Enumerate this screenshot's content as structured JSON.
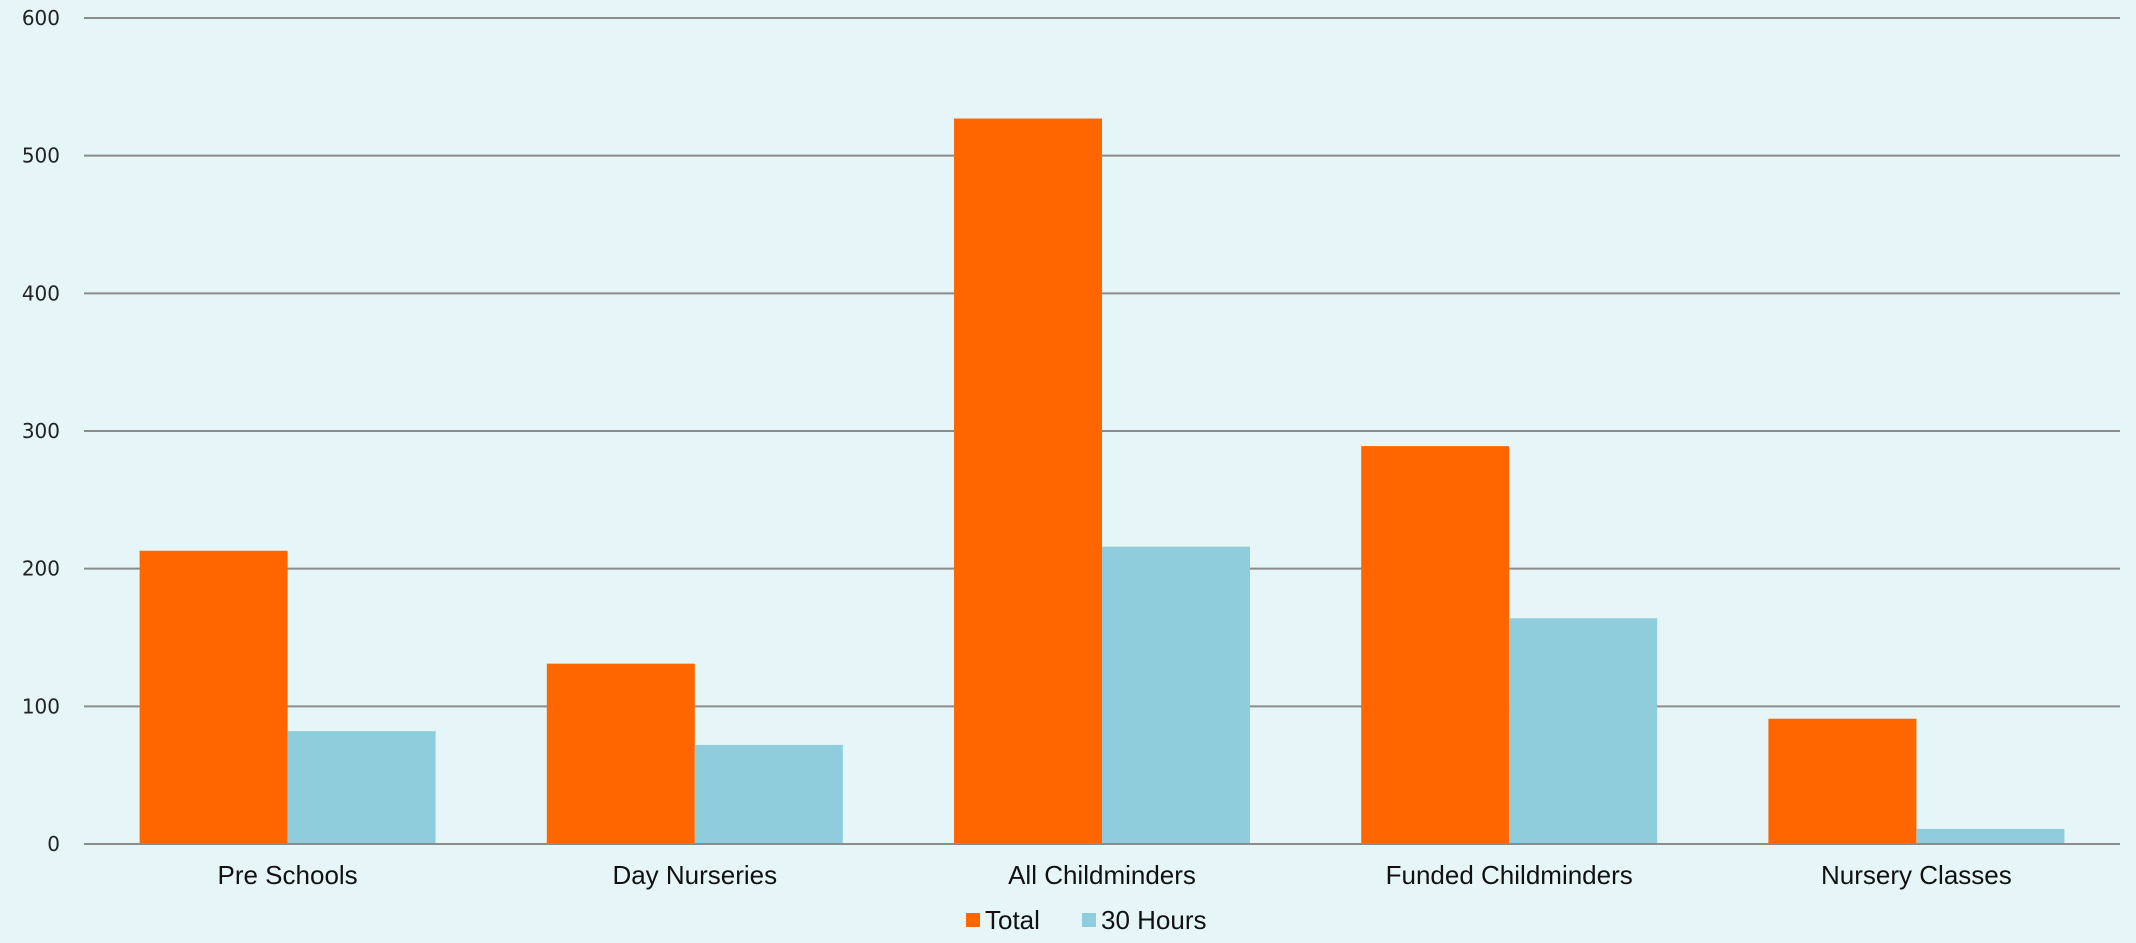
{
  "chart_data": {
    "type": "bar",
    "title": "",
    "xlabel": "",
    "ylabel": "",
    "categories": [
      "Pre Schools",
      "Day Nurseries",
      "All Childminders",
      "Funded Childminders",
      "Nursery Classes"
    ],
    "series": [
      {
        "name": "Total",
        "color": "#ff6600",
        "values": [
          213,
          131,
          527,
          289,
          91
        ]
      },
      {
        "name": "30 Hours",
        "color": "#8fcddd",
        "values": [
          82,
          72,
          216,
          164,
          11
        ]
      }
    ],
    "ylim": [
      0,
      600
    ],
    "yticks": [
      0,
      100,
      200,
      300,
      400,
      500,
      600
    ],
    "grid": true,
    "legend_position": "bottom-center"
  }
}
